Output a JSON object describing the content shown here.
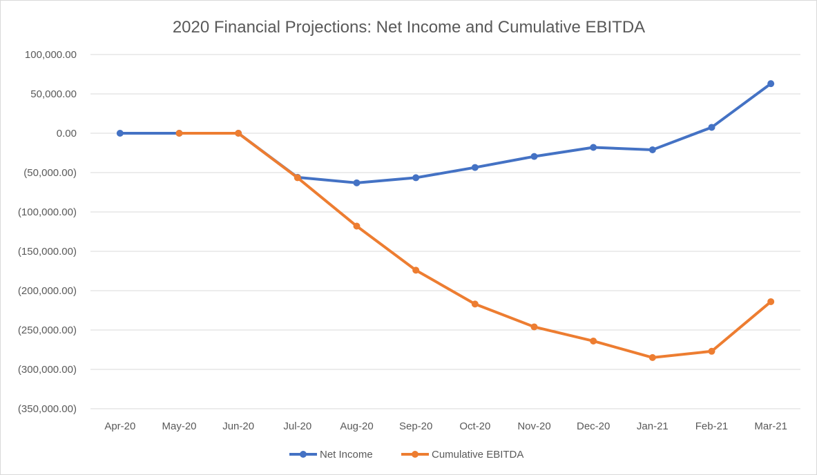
{
  "chart_data": {
    "type": "line",
    "title": "2020 Financial Projections: Net Income and Cumulative EBITDA",
    "xlabel": "",
    "ylabel": "",
    "categories": [
      "Apr-20",
      "May-20",
      "Jun-20",
      "Jul-20",
      "Aug-20",
      "Sep-20",
      "Oct-20",
      "Nov-20",
      "Dec-20",
      "Jan-21",
      "Feb-21",
      "Mar-21"
    ],
    "ylim": [
      -350000,
      100000
    ],
    "ytick_step": 50000,
    "ytick_labels": [
      "100,000.00",
      "50,000.00",
      "0.00",
      "(50,000.00)",
      "(100,000.00)",
      "(150,000.00)",
      "(200,000.00)",
      "(250,000.00)",
      "(300,000.00)",
      "(350,000.00)"
    ],
    "grid": true,
    "legend_position": "bottom",
    "series": [
      {
        "name": "Net Income",
        "color": "#4472c4",
        "values": [
          0,
          0,
          0,
          -56000,
          -63000,
          -56500,
          -43500,
          -29500,
          -18000,
          -21000,
          7500,
          63000
        ]
      },
      {
        "name": "Cumulative EBITDA",
        "color": "#ed7d31",
        "values": [
          null,
          0,
          0,
          -56500,
          -118000,
          -174000,
          -217000,
          -246000,
          -264000,
          -285000,
          -277000,
          -214000
        ]
      }
    ]
  }
}
